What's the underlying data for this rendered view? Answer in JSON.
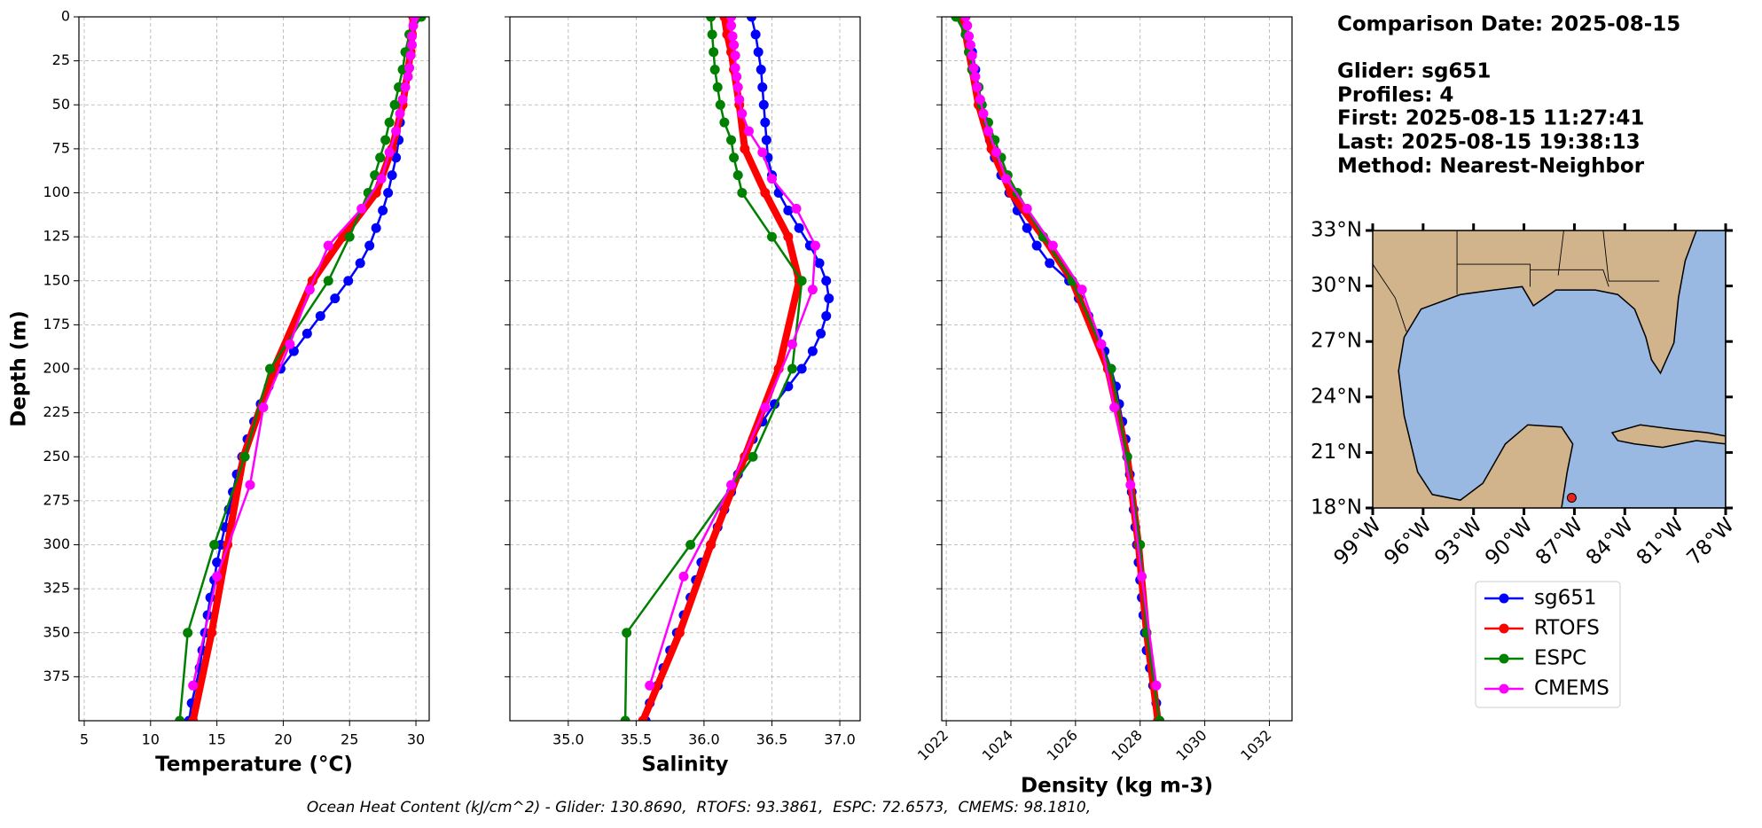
{
  "legend": {
    "entries": [
      {
        "name": "sg651",
        "color": "#0000ff",
        "linewidth": 2.5
      },
      {
        "name": "RTOFS",
        "color": "#ff0000",
        "linewidth": 8
      },
      {
        "name": "ESPC",
        "color": "#008000",
        "linewidth": 2.5
      },
      {
        "name": "CMEMS",
        "color": "#ff00ff",
        "linewidth": 2.5
      }
    ]
  },
  "chart_data": [
    {
      "type": "line",
      "xlabel": "Temperature (°C)",
      "ylabel": "Depth (m)",
      "xlim": [
        4.6,
        31
      ],
      "xticks": [
        5,
        10,
        15,
        20,
        25,
        30
      ],
      "ylim": [
        0,
        400
      ],
      "yticks": [
        0,
        25,
        50,
        75,
        100,
        125,
        150,
        175,
        200,
        225,
        250,
        275,
        300,
        325,
        350,
        375
      ],
      "invert_y": true,
      "grid": true,
      "show_ytick_labels": true,
      "series": [
        {
          "depth": [
            0,
            10,
            20,
            30,
            40,
            50,
            60,
            70,
            80,
            90,
            100,
            110,
            120,
            130,
            140,
            150,
            160,
            170,
            180,
            190,
            200,
            210,
            220,
            230,
            240,
            250,
            260,
            270,
            280,
            290,
            300,
            310,
            320,
            330,
            340,
            350,
            360,
            370,
            380,
            390,
            400
          ],
          "values": [
            29.8,
            29.6,
            29.5,
            29.3,
            29.1,
            28.9,
            28.8,
            28.7,
            28.5,
            28.2,
            27.9,
            27.5,
            27.0,
            26.5,
            25.8,
            24.9,
            23.9,
            22.8,
            21.8,
            20.8,
            19.8,
            18.9,
            18.3,
            17.8,
            17.3,
            16.9,
            16.5,
            16.2,
            15.9,
            15.6,
            15.3,
            15.0,
            14.8,
            14.5,
            14.3,
            14.1,
            13.9,
            13.7,
            13.4,
            13.1,
            12.9
          ]
        },
        {
          "depth": [
            0,
            10,
            20,
            30,
            50,
            75,
            100,
            125,
            150,
            200,
            250,
            300,
            350,
            400
          ],
          "values": [
            29.8,
            29.7,
            29.6,
            29.4,
            29.0,
            28.2,
            27.0,
            24.5,
            22.2,
            19.3,
            17.0,
            15.8,
            14.6,
            13.2
          ]
        },
        {
          "depth": [
            0,
            10,
            20,
            30,
            40,
            50,
            60,
            70,
            80,
            90,
            100,
            125,
            150,
            200,
            250,
            300,
            350,
            400
          ],
          "values": [
            30.4,
            29.5,
            29.2,
            29.0,
            28.7,
            28.4,
            28.0,
            27.7,
            27.3,
            26.9,
            26.4,
            25.0,
            23.4,
            19.0,
            17.1,
            14.8,
            12.8,
            12.2
          ]
        },
        {
          "depth": [
            0,
            5,
            11,
            16,
            22,
            29,
            34,
            40,
            47,
            55,
            65,
            77,
            92,
            109,
            130,
            155,
            186,
            222,
            266,
            318,
            380
          ],
          "values": [
            29.9,
            29.8,
            29.7,
            29.7,
            29.6,
            29.5,
            29.4,
            29.2,
            29.0,
            28.8,
            28.5,
            28.0,
            27.4,
            25.9,
            23.4,
            22.0,
            20.5,
            18.5,
            17.5,
            15.0,
            13.2
          ]
        }
      ]
    },
    {
      "type": "line",
      "xlabel": "Salinity",
      "xlim": [
        34.57,
        37.15
      ],
      "xticks": [
        {
          "value": 35,
          "label": "35.0"
        },
        35.5,
        {
          "value": 36,
          "label": "36.0"
        },
        36.5,
        {
          "value": 37,
          "label": "37.0"
        }
      ],
      "ylim": [
        0,
        400
      ],
      "yticks": [
        0,
        25,
        50,
        75,
        100,
        125,
        150,
        175,
        200,
        225,
        250,
        275,
        300,
        325,
        350,
        375
      ],
      "invert_y": true,
      "grid": true,
      "show_ytick_labels": false,
      "series": [
        {
          "depth": [
            0,
            10,
            20,
            30,
            40,
            50,
            60,
            70,
            80,
            90,
            100,
            110,
            120,
            130,
            140,
            150,
            160,
            170,
            180,
            190,
            200,
            210,
            220,
            230,
            240,
            250,
            260,
            270,
            280,
            290,
            300,
            310,
            320,
            330,
            340,
            350,
            360,
            370,
            380,
            390,
            400
          ],
          "values": [
            36.35,
            36.38,
            36.4,
            36.42,
            36.43,
            36.44,
            36.45,
            36.46,
            36.47,
            36.5,
            36.55,
            36.62,
            36.7,
            36.78,
            36.85,
            36.9,
            36.92,
            36.9,
            36.86,
            36.8,
            36.72,
            36.62,
            36.52,
            36.43,
            36.36,
            36.3,
            36.25,
            36.2,
            36.15,
            36.1,
            36.05,
            35.98,
            35.94,
            35.9,
            35.85,
            35.8,
            35.75,
            35.7,
            35.66,
            35.6,
            35.57
          ]
        },
        {
          "depth": [
            0,
            10,
            20,
            30,
            50,
            75,
            100,
            125,
            150,
            200,
            250,
            300,
            350,
            400
          ],
          "values": [
            36.15,
            36.17,
            36.2,
            36.22,
            36.26,
            36.3,
            36.45,
            36.62,
            36.7,
            36.55,
            36.3,
            36.05,
            35.82,
            35.55
          ]
        },
        {
          "depth": [
            0,
            10,
            20,
            30,
            40,
            50,
            60,
            70,
            80,
            90,
            100,
            125,
            150,
            200,
            250,
            300,
            350,
            400
          ],
          "values": [
            36.05,
            36.06,
            36.07,
            36.08,
            36.1,
            36.12,
            36.15,
            36.2,
            36.22,
            36.25,
            36.28,
            36.5,
            36.72,
            36.65,
            36.36,
            35.9,
            35.43,
            35.42
          ]
        },
        {
          "depth": [
            0,
            5,
            11,
            16,
            22,
            29,
            34,
            40,
            47,
            55,
            65,
            77,
            92,
            109,
            130,
            155,
            186,
            222,
            266,
            318,
            380
          ],
          "values": [
            36.2,
            36.2,
            36.21,
            36.22,
            36.23,
            36.23,
            36.24,
            36.25,
            36.26,
            36.28,
            36.33,
            36.43,
            36.5,
            36.68,
            36.82,
            36.8,
            36.65,
            36.45,
            36.2,
            35.85,
            35.6
          ]
        }
      ]
    },
    {
      "type": "line",
      "xlabel": "Density (kg m-3)",
      "xlim": [
        1021.86,
        1032.7
      ],
      "xticks": [
        1022,
        1024,
        1026,
        1028,
        1030,
        1032
      ],
      "xtick_rotation": 45,
      "ylim": [
        0,
        400
      ],
      "yticks": [
        0,
        25,
        50,
        75,
        100,
        125,
        150,
        175,
        200,
        225,
        250,
        275,
        300,
        325,
        350,
        375
      ],
      "invert_y": true,
      "grid": true,
      "show_ytick_labels": false,
      "series": [
        {
          "depth": [
            0,
            10,
            20,
            30,
            40,
            50,
            60,
            70,
            80,
            90,
            100,
            110,
            120,
            130,
            140,
            150,
            160,
            170,
            180,
            190,
            200,
            210,
            220,
            230,
            240,
            250,
            260,
            270,
            280,
            290,
            300,
            310,
            320,
            330,
            340,
            350,
            360,
            370,
            380,
            390,
            400
          ],
          "values": [
            1022.4,
            1022.6,
            1022.8,
            1022.9,
            1023.0,
            1023.1,
            1023.2,
            1023.35,
            1023.5,
            1023.7,
            1023.95,
            1024.2,
            1024.5,
            1024.8,
            1025.2,
            1025.8,
            1026.1,
            1026.4,
            1026.7,
            1026.9,
            1027.1,
            1027.25,
            1027.35,
            1027.45,
            1027.55,
            1027.6,
            1027.68,
            1027.74,
            1027.8,
            1027.85,
            1027.9,
            1027.95,
            1028.0,
            1028.05,
            1028.1,
            1028.15,
            1028.2,
            1028.3,
            1028.4,
            1028.5,
            1028.6
          ]
        },
        {
          "depth": [
            0,
            10,
            20,
            30,
            50,
            75,
            100,
            125,
            150,
            200,
            250,
            300,
            350,
            400
          ],
          "values": [
            1022.5,
            1022.6,
            1022.7,
            1022.8,
            1023.0,
            1023.4,
            1024.0,
            1025.0,
            1025.9,
            1027.0,
            1027.6,
            1027.95,
            1028.2,
            1028.55
          ]
        },
        {
          "depth": [
            0,
            10,
            20,
            30,
            40,
            50,
            60,
            70,
            80,
            90,
            100,
            125,
            150,
            200,
            250,
            300,
            350,
            400
          ],
          "values": [
            1022.3,
            1022.6,
            1022.7,
            1022.8,
            1023.0,
            1023.1,
            1023.3,
            1023.5,
            1023.7,
            1023.9,
            1024.2,
            1025.0,
            1025.9,
            1027.1,
            1027.6,
            1028.0,
            1028.2,
            1028.6
          ]
        },
        {
          "depth": [
            0,
            5,
            11,
            16,
            22,
            29,
            34,
            40,
            47,
            55,
            65,
            77,
            92,
            109,
            130,
            155,
            186,
            222,
            266,
            318,
            380
          ],
          "values": [
            1022.6,
            1022.65,
            1022.7,
            1022.75,
            1022.8,
            1022.85,
            1022.9,
            1022.95,
            1023.05,
            1023.15,
            1023.3,
            1023.55,
            1023.85,
            1024.5,
            1025.3,
            1026.2,
            1026.8,
            1027.2,
            1027.7,
            1028.05,
            1028.5
          ]
        }
      ]
    }
  ],
  "info": {
    "lines": [
      "Comparison Date: 2025-08-15",
      "Glider: sg651",
      "Profiles: 4",
      "First: 2025-08-15 11:27:41",
      "Last: 2025-08-15 19:38:13",
      "Method: Nearest-Neighbor"
    ]
  },
  "map": {
    "xlim": [
      -99,
      -78
    ],
    "ylim": [
      18,
      33
    ],
    "yticks": [
      {
        "value": 33,
        "label": "33°N"
      },
      {
        "value": 30,
        "label": "30°N"
      },
      {
        "value": 27,
        "label": "27°N"
      },
      {
        "value": 24,
        "label": "24°N"
      },
      {
        "value": 21,
        "label": "21°N"
      },
      {
        "value": 18,
        "label": "18°N"
      }
    ],
    "xticks": [
      {
        "value": -99,
        "label": "99°W"
      },
      {
        "value": -96,
        "label": "96°W"
      },
      {
        "value": -93,
        "label": "93°W"
      },
      {
        "value": -90,
        "label": "90°W"
      },
      {
        "value": -87,
        "label": "87°W"
      },
      {
        "value": -84,
        "label": "84°W"
      },
      {
        "value": -81,
        "label": "81°W"
      },
      {
        "value": -78,
        "label": "78°W"
      }
    ],
    "glider_position": {
      "lon": -87.16,
      "lat": 18.55,
      "color": "#e8241c"
    }
  },
  "caption": "Ocean Heat Content (kJ/cm^2) - Glider: 130.8690,  RTOFS: 93.3861,  ESPC: 72.6573,  CMEMS: 98.1810,"
}
